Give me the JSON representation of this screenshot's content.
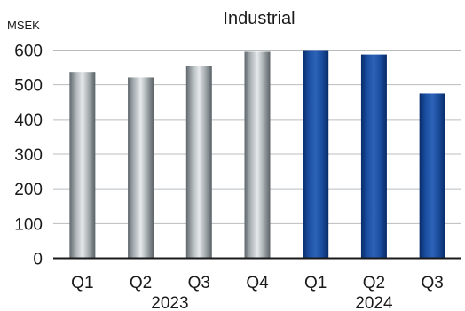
{
  "chart_data": {
    "type": "bar",
    "title": "Industrial",
    "ylabel": "MSEK",
    "xlabel": "",
    "ylim": [
      0,
      600
    ],
    "yticks": [
      0,
      100,
      200,
      300,
      400,
      500,
      600
    ],
    "grid": true,
    "categories": [
      "Q1",
      "Q2",
      "Q3",
      "Q4",
      "Q1",
      "Q2",
      "Q3"
    ],
    "groups": [
      {
        "label": "2023",
        "categories": [
          "Q1",
          "Q2",
          "Q3",
          "Q4"
        ]
      },
      {
        "label": "2024",
        "categories": [
          "Q1",
          "Q2",
          "Q3"
        ]
      }
    ],
    "series": [
      {
        "values": [
          537,
          521,
          554,
          595,
          600,
          587,
          475
        ]
      }
    ],
    "colors": {
      "bars_2023": "#8c9499",
      "bars_2024": "#0b3f8f"
    }
  }
}
